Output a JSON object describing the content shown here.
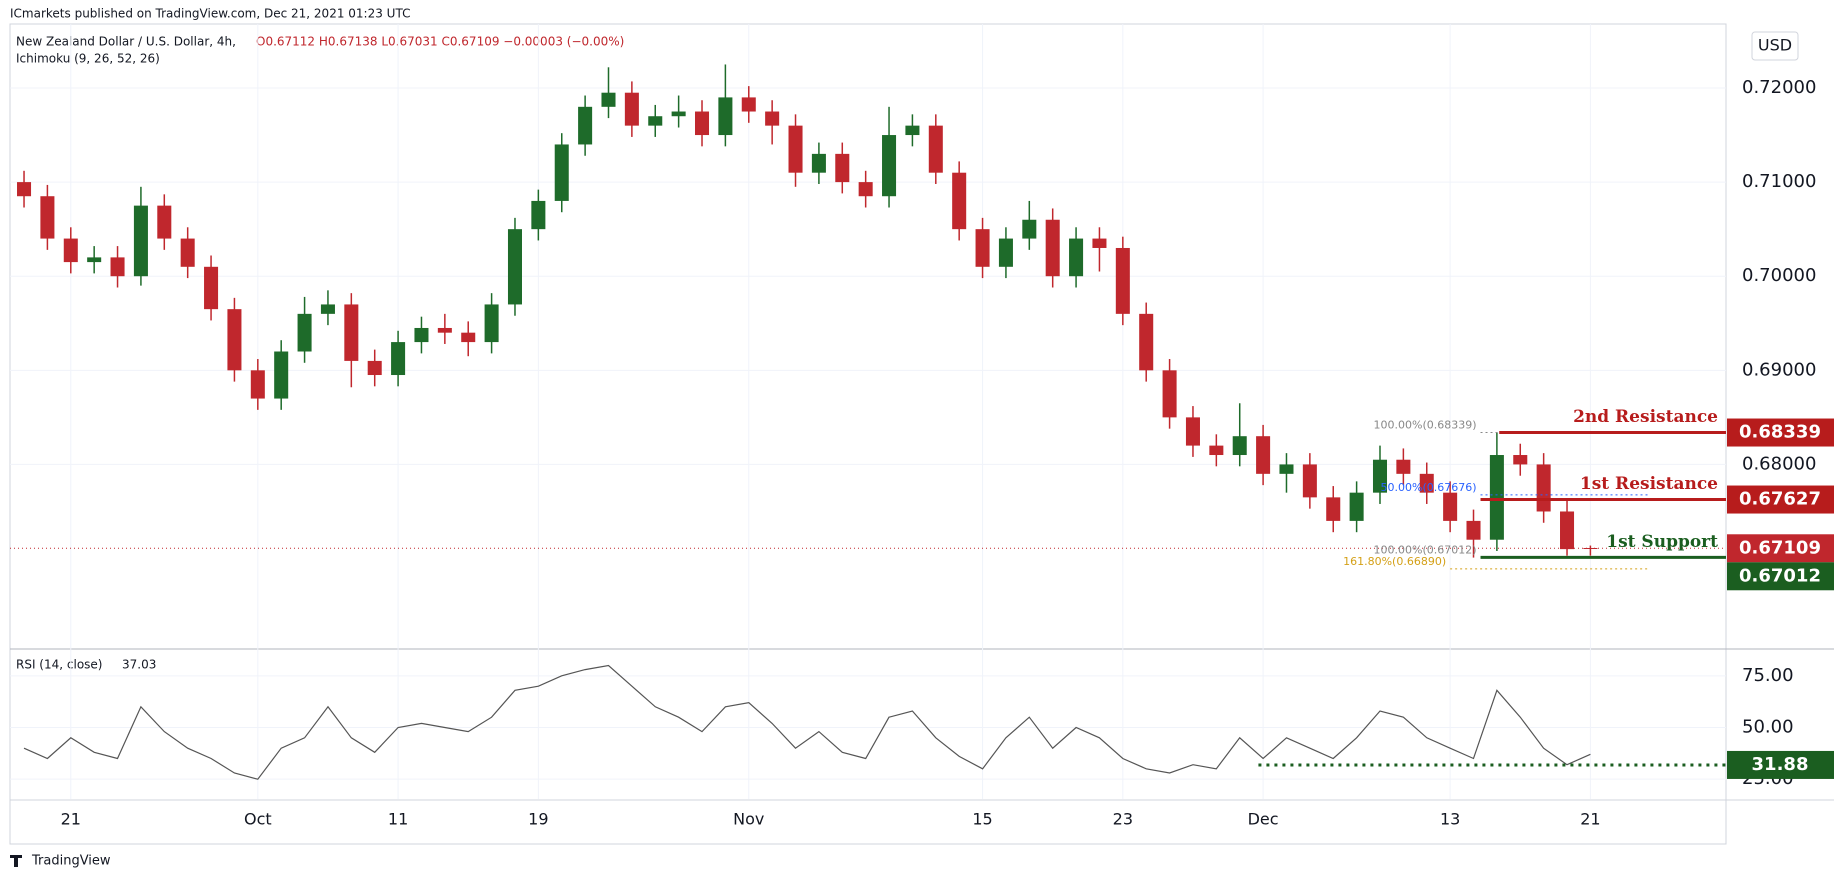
{
  "chart_data": {
    "type": "candlestick",
    "published": "ICmarkets published on TradingView.com, Dec 21, 2021 01:23 UTC",
    "symbol": "New Zealand Dollar / U.S. Dollar, 4h,",
    "ohlc_legend": "O0.67112 H0.67138 L0.67031 C0.67109 −0.00003 (−0.00%)",
    "indicator": "Ichimoku (9, 26, 52, 26)",
    "currency": "USD",
    "brand": "TradingView",
    "up_color": "#1e6b2a",
    "down_color": "#c0272d",
    "x": [
      -2,
      -1,
      0,
      1,
      2,
      3,
      4,
      5,
      6,
      7,
      8,
      9,
      10,
      11,
      12,
      13,
      14,
      15,
      16,
      17,
      18,
      19,
      20,
      21,
      22,
      23,
      24,
      25,
      26,
      27,
      28,
      29,
      30,
      31,
      32,
      33,
      34,
      35,
      36,
      37,
      38,
      39,
      40,
      41,
      42,
      43,
      44,
      45,
      46,
      47,
      48,
      49,
      50,
      51,
      52,
      53,
      54,
      55,
      56,
      57,
      58,
      59,
      60,
      61,
      62,
      63,
      64,
      65
    ],
    "ohlc": [
      [
        0.71,
        0.7112,
        0.7073,
        0.7085
      ],
      [
        0.7085,
        0.7097,
        0.7028,
        0.704
      ],
      [
        0.704,
        0.7052,
        0.7003,
        0.7015
      ],
      [
        0.7015,
        0.7032,
        0.7003,
        0.702
      ],
      [
        0.702,
        0.7032,
        0.6988,
        0.7
      ],
      [
        0.7,
        0.7095,
        0.699,
        0.7075
      ],
      [
        0.7075,
        0.7087,
        0.7028,
        0.704
      ],
      [
        0.704,
        0.7052,
        0.6998,
        0.701
      ],
      [
        0.701,
        0.7022,
        0.6953,
        0.6965
      ],
      [
        0.6965,
        0.6977,
        0.6888,
        0.69
      ],
      [
        0.69,
        0.6912,
        0.6858,
        0.687
      ],
      [
        0.687,
        0.6932,
        0.6858,
        0.692
      ],
      [
        0.692,
        0.6978,
        0.6908,
        0.696
      ],
      [
        0.696,
        0.6985,
        0.6948,
        0.697
      ],
      [
        0.697,
        0.6982,
        0.6882,
        0.691
      ],
      [
        0.691,
        0.6922,
        0.6883,
        0.6895
      ],
      [
        0.6895,
        0.6942,
        0.6883,
        0.693
      ],
      [
        0.693,
        0.6957,
        0.6918,
        0.6945
      ],
      [
        0.6945,
        0.696,
        0.6928,
        0.694
      ],
      [
        0.694,
        0.6952,
        0.6915,
        0.693
      ],
      [
        0.693,
        0.6982,
        0.6918,
        0.697
      ],
      [
        0.697,
        0.7062,
        0.6958,
        0.705
      ],
      [
        0.705,
        0.7092,
        0.7038,
        0.708
      ],
      [
        0.708,
        0.7152,
        0.7068,
        0.714
      ],
      [
        0.714,
        0.7192,
        0.7128,
        0.718
      ],
      [
        0.718,
        0.7222,
        0.7168,
        0.7195
      ],
      [
        0.7195,
        0.7207,
        0.7148,
        0.716
      ],
      [
        0.716,
        0.7182,
        0.7148,
        0.717
      ],
      [
        0.717,
        0.7192,
        0.7158,
        0.7175
      ],
      [
        0.7175,
        0.7187,
        0.7138,
        0.715
      ],
      [
        0.715,
        0.7225,
        0.7138,
        0.719
      ],
      [
        0.719,
        0.7202,
        0.7163,
        0.7175
      ],
      [
        0.7175,
        0.7187,
        0.714,
        0.716
      ],
      [
        0.716,
        0.7172,
        0.7095,
        0.711
      ],
      [
        0.711,
        0.7142,
        0.7098,
        0.713
      ],
      [
        0.713,
        0.7142,
        0.7088,
        0.71
      ],
      [
        0.71,
        0.7112,
        0.7073,
        0.7085
      ],
      [
        0.7085,
        0.718,
        0.7073,
        0.715
      ],
      [
        0.715,
        0.7172,
        0.7138,
        0.716
      ],
      [
        0.716,
        0.7172,
        0.7098,
        0.711
      ],
      [
        0.711,
        0.7122,
        0.7038,
        0.705
      ],
      [
        0.705,
        0.7062,
        0.6998,
        0.701
      ],
      [
        0.701,
        0.7052,
        0.6998,
        0.704
      ],
      [
        0.704,
        0.708,
        0.7028,
        0.706
      ],
      [
        0.706,
        0.7072,
        0.6988,
        0.7
      ],
      [
        0.7,
        0.7052,
        0.6988,
        0.704
      ],
      [
        0.704,
        0.7052,
        0.7005,
        0.703
      ],
      [
        0.703,
        0.7042,
        0.6948,
        0.696
      ],
      [
        0.696,
        0.6972,
        0.6888,
        0.69
      ],
      [
        0.69,
        0.6912,
        0.6838,
        0.685
      ],
      [
        0.685,
        0.6862,
        0.6808,
        0.682
      ],
      [
        0.682,
        0.6832,
        0.6798,
        0.681
      ],
      [
        0.681,
        0.6865,
        0.6798,
        0.683
      ],
      [
        0.683,
        0.6842,
        0.6778,
        0.679
      ],
      [
        0.679,
        0.6812,
        0.677,
        0.68
      ],
      [
        0.68,
        0.6812,
        0.6753,
        0.6765
      ],
      [
        0.6765,
        0.6777,
        0.6728,
        0.674
      ],
      [
        0.674,
        0.6782,
        0.6728,
        0.677
      ],
      [
        0.677,
        0.682,
        0.6758,
        0.6805
      ],
      [
        0.6805,
        0.6817,
        0.6778,
        0.679
      ],
      [
        0.679,
        0.6802,
        0.6758,
        0.677
      ],
      [
        0.677,
        0.6782,
        0.6728,
        0.674
      ],
      [
        0.674,
        0.6752,
        0.6701,
        0.672
      ],
      [
        0.672,
        0.6834,
        0.6708,
        0.681
      ],
      [
        0.681,
        0.6822,
        0.6788,
        0.68
      ],
      [
        0.68,
        0.6812,
        0.6738,
        0.675
      ],
      [
        0.675,
        0.6762,
        0.6703,
        0.671
      ],
      [
        0.67112,
        0.67138,
        0.67031,
        0.67109
      ]
    ],
    "xlim": [
      -2.6,
      70.8
    ],
    "ylim": [
      0.6606,
      0.7268
    ],
    "xticks": [
      {
        "value": 0,
        "label": "21"
      },
      {
        "value": 8,
        "label": "Oct"
      },
      {
        "value": 14,
        "label": "11"
      },
      {
        "value": 20,
        "label": "19"
      },
      {
        "value": 29,
        "label": "Nov"
      },
      {
        "value": 39,
        "label": "15"
      },
      {
        "value": 45,
        "label": "23"
      },
      {
        "value": 51,
        "label": "Dec"
      },
      {
        "value": 59,
        "label": "13"
      },
      {
        "value": 65,
        "label": "21"
      }
    ],
    "yticks": [
      {
        "value": 0.68,
        "label": "0.68000"
      },
      {
        "value": 0.69,
        "label": "0.69000"
      },
      {
        "value": 0.7,
        "label": "0.70000"
      },
      {
        "value": 0.71,
        "label": "0.71000"
      },
      {
        "value": 0.72,
        "label": "0.72000"
      }
    ],
    "last_price": 0.67109,
    "levels": [
      {
        "label": "2nd Resistance",
        "value": 0.68339,
        "color": "#b71c1c"
      },
      {
        "label": "1st Resistance",
        "value": 0.67627,
        "color": "#b71c1c"
      },
      {
        "label": "1st Support",
        "value": 0.67012,
        "color": "#1b5e20"
      }
    ],
    "fib": [
      {
        "label": "100.00%(0.68339)",
        "value": 0.68339,
        "color": "#888888"
      },
      {
        "label": "50.00%(0.67676)",
        "value": 0.67676,
        "color": "#2962ff"
      },
      {
        "label": "100.00%(0.67012)",
        "value": 0.67012,
        "color": "#888888"
      },
      {
        "label": "161.80%(0.66890)",
        "value": 0.6689,
        "color": "#d4a017"
      }
    ],
    "rsi": {
      "title": "RSI (14, close)",
      "color": "#555555",
      "level": 31.88,
      "level_color": "#1b5e20",
      "ylim": [
        15.4,
        87.5
      ],
      "yticks": [
        {
          "value": 25,
          "label": "25.00"
        },
        {
          "value": 50,
          "label": "50.00"
        },
        {
          "value": 75,
          "label": "75.00"
        }
      ],
      "values": [
        40,
        35,
        45,
        38,
        35,
        60,
        48,
        40,
        35,
        28,
        25,
        40,
        45,
        60,
        45,
        38,
        50,
        52,
        50,
        48,
        55,
        68,
        70,
        75,
        78,
        80,
        70,
        60,
        55,
        48,
        60,
        62,
        52,
        40,
        48,
        38,
        35,
        55,
        58,
        45,
        36,
        30,
        45,
        55,
        40,
        50,
        45,
        35,
        30,
        28,
        32,
        30,
        45,
        35,
        45,
        40,
        35,
        45,
        58,
        55,
        45,
        40,
        35,
        68,
        55,
        40,
        32,
        37.03
      ]
    }
  }
}
